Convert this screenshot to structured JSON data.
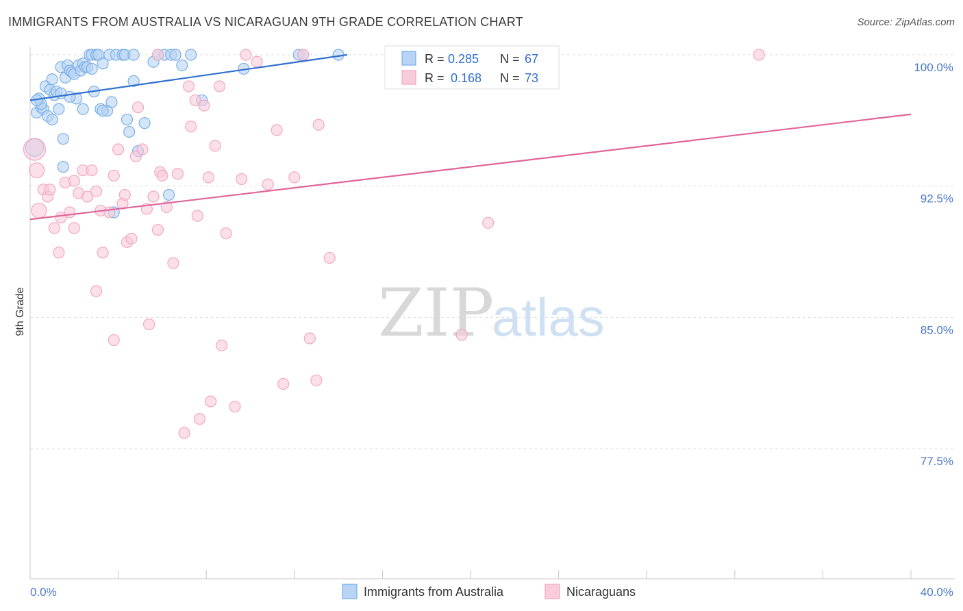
{
  "title": "IMMIGRANTS FROM AUSTRALIA VS NICARAGUAN 9TH GRADE CORRELATION CHART",
  "source": "Source: ZipAtlas.com",
  "chart_data": {
    "type": "scatter",
    "xlabel": "",
    "ylabel": "9th Grade",
    "xlim": [
      0,
      40
    ],
    "ylim": [
      70.5,
      100.4
    ],
    "x_tick_labels": [
      "0.0%",
      "40.0%"
    ],
    "y_ticks": [
      100.0,
      92.5,
      85.0,
      77.5
    ],
    "y_tick_labels": [
      "100.0%",
      "92.5%",
      "85.0%",
      "77.5%"
    ],
    "watermark": {
      "zip": "ZIP",
      "atlas": "atlas"
    },
    "legend": {
      "r_label": "R =",
      "n_label": "N =",
      "entries": [
        {
          "r": "0.285",
          "n": "67"
        },
        {
          "r": "0.168",
          "n": "73"
        }
      ]
    },
    "series": [
      {
        "name": "Immigrants from Australia",
        "color": "#7aaee8",
        "fill": "#b8d3f3",
        "line_color": "#2f6fd1",
        "trend": {
          "x": [
            0.0,
            14.4
          ],
          "y": [
            97.4,
            100.0
          ]
        },
        "points": [
          [
            0.2,
            94.7
          ],
          [
            0.3,
            96.7
          ],
          [
            0.4,
            97.5
          ],
          [
            0.5,
            97.0
          ],
          [
            0.6,
            96.9
          ],
          [
            0.7,
            98.2
          ],
          [
            0.8,
            96.5
          ],
          [
            0.9,
            98.0
          ],
          [
            1.0,
            98.6
          ],
          [
            1.1,
            97.7
          ],
          [
            1.2,
            97.9
          ],
          [
            1.3,
            96.9
          ],
          [
            1.4,
            99.3
          ],
          [
            1.5,
            95.2
          ],
          [
            1.5,
            93.6
          ],
          [
            1.6,
            98.7
          ],
          [
            1.7,
            99.4
          ],
          [
            1.8,
            99.1
          ],
          [
            1.9,
            99.0
          ],
          [
            2.0,
            98.9
          ],
          [
            2.1,
            97.5
          ],
          [
            2.2,
            99.4
          ],
          [
            2.3,
            99.1
          ],
          [
            2.4,
            99.5
          ],
          [
            2.5,
            99.3
          ],
          [
            2.6,
            99.3
          ],
          [
            2.7,
            100.0
          ],
          [
            2.8,
            100.0
          ],
          [
            2.9,
            97.9
          ],
          [
            3.0,
            100.0
          ],
          [
            3.1,
            100.0
          ],
          [
            3.2,
            96.9
          ],
          [
            3.3,
            99.5
          ],
          [
            3.5,
            96.8
          ],
          [
            3.6,
            100.0
          ],
          [
            3.7,
            97.3
          ],
          [
            3.8,
            91.0
          ],
          [
            3.9,
            100.0
          ],
          [
            4.2,
            100.0
          ],
          [
            4.3,
            100.0
          ],
          [
            4.4,
            96.3
          ],
          [
            4.5,
            95.6
          ],
          [
            4.7,
            98.5
          ],
          [
            4.9,
            94.5
          ],
          [
            5.2,
            96.1
          ],
          [
            5.6,
            99.6
          ],
          [
            5.8,
            100.0
          ],
          [
            6.1,
            100.0
          ],
          [
            6.3,
            92.0
          ],
          [
            6.4,
            100.0
          ],
          [
            6.6,
            100.0
          ],
          [
            6.9,
            99.4
          ],
          [
            7.3,
            100.0
          ],
          [
            7.8,
            97.4
          ],
          [
            9.7,
            99.2
          ],
          [
            12.2,
            100.0
          ],
          [
            12.4,
            100.0
          ],
          [
            14.0,
            100.0
          ],
          [
            1.8,
            97.6
          ],
          [
            2.8,
            99.2
          ],
          [
            1.0,
            96.3
          ],
          [
            0.5,
            97.2
          ],
          [
            3.3,
            96.8
          ],
          [
            0.3,
            97.4
          ],
          [
            2.4,
            96.9
          ],
          [
            4.7,
            100.0
          ],
          [
            1.4,
            97.8
          ]
        ]
      },
      {
        "name": "Nicaraguans",
        "color": "#f2a8c0",
        "fill": "#f8ccda",
        "line_color": "#e0649a",
        "trend": {
          "x": [
            0.0,
            40.0
          ],
          "y": [
            90.6,
            96.6
          ]
        },
        "points": [
          [
            0.2,
            94.6
          ],
          [
            0.3,
            93.4
          ],
          [
            0.4,
            91.1
          ],
          [
            0.6,
            92.3
          ],
          [
            0.8,
            91.9
          ],
          [
            0.9,
            92.3
          ],
          [
            1.1,
            90.1
          ],
          [
            1.3,
            88.7
          ],
          [
            1.4,
            90.7
          ],
          [
            1.6,
            92.7
          ],
          [
            1.8,
            91.0
          ],
          [
            2.0,
            90.1
          ],
          [
            2.2,
            92.1
          ],
          [
            2.4,
            93.4
          ],
          [
            2.6,
            91.9
          ],
          [
            2.8,
            93.4
          ],
          [
            3.0,
            92.2
          ],
          [
            3.0,
            86.5
          ],
          [
            3.2,
            91.1
          ],
          [
            3.3,
            88.7
          ],
          [
            3.6,
            91.0
          ],
          [
            3.8,
            93.1
          ],
          [
            3.8,
            83.7
          ],
          [
            4.0,
            94.6
          ],
          [
            4.2,
            91.5
          ],
          [
            4.3,
            92.0
          ],
          [
            4.4,
            89.3
          ],
          [
            4.6,
            89.5
          ],
          [
            4.8,
            94.2
          ],
          [
            4.9,
            97.0
          ],
          [
            5.1,
            94.6
          ],
          [
            5.3,
            91.2
          ],
          [
            5.4,
            84.6
          ],
          [
            5.6,
            91.9
          ],
          [
            5.8,
            90.0
          ],
          [
            5.9,
            93.3
          ],
          [
            6.0,
            93.1
          ],
          [
            6.2,
            91.3
          ],
          [
            6.5,
            88.1
          ],
          [
            6.7,
            93.2
          ],
          [
            7.0,
            78.4
          ],
          [
            7.2,
            98.2
          ],
          [
            7.3,
            95.9
          ],
          [
            7.5,
            97.4
          ],
          [
            7.6,
            90.8
          ],
          [
            7.7,
            79.2
          ],
          [
            7.9,
            97.1
          ],
          [
            8.1,
            93.0
          ],
          [
            8.2,
            80.2
          ],
          [
            8.4,
            94.8
          ],
          [
            8.6,
            98.2
          ],
          [
            8.7,
            83.4
          ],
          [
            8.9,
            89.8
          ],
          [
            9.3,
            79.9
          ],
          [
            9.6,
            92.9
          ],
          [
            9.8,
            100.0
          ],
          [
            10.3,
            99.6
          ],
          [
            10.8,
            92.6
          ],
          [
            11.2,
            95.7
          ],
          [
            11.5,
            81.2
          ],
          [
            12.0,
            93.0
          ],
          [
            12.4,
            100.0
          ],
          [
            12.7,
            83.8
          ],
          [
            13.0,
            81.4
          ],
          [
            13.1,
            96.0
          ],
          [
            13.6,
            88.4
          ],
          [
            16.8,
            100.0
          ],
          [
            19.6,
            84.0
          ],
          [
            20.8,
            90.4
          ],
          [
            23.4,
            100.0
          ],
          [
            33.1,
            100.0
          ],
          [
            5.8,
            100.0
          ],
          [
            2.0,
            92.8
          ]
        ]
      }
    ]
  }
}
